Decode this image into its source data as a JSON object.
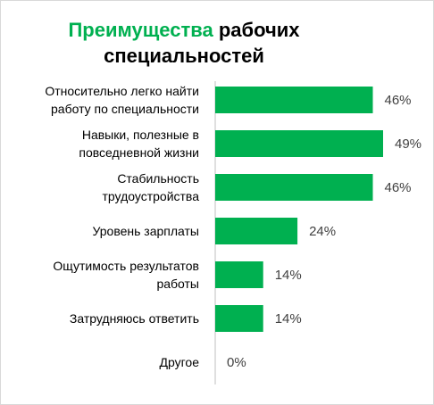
{
  "chart_data": {
    "type": "bar",
    "orientation": "horizontal",
    "title_accent": "Преимущества",
    "title_rest": "рабочих специальностей",
    "categories": [
      [
        "Относительно легко найти",
        "работу по специальности"
      ],
      [
        "Навыки, полезные в",
        "повседневной жизни"
      ],
      [
        "Стабильность",
        "трудоустройства"
      ],
      [
        "Уровень зарплаты"
      ],
      [
        "Ощутимость результатов",
        "работы"
      ],
      [
        "Затрудняюсь ответить"
      ],
      [
        "Другое"
      ]
    ],
    "values": [
      46,
      49,
      46,
      24,
      14,
      14,
      0
    ],
    "value_labels": [
      "46%",
      "49%",
      "46%",
      "24%",
      "14%",
      "14%",
      "0%"
    ],
    "xlim": [
      0,
      50
    ],
    "grid": false,
    "legend": "none",
    "bar_color": "#00b050",
    "accent_color": "#00b050"
  }
}
